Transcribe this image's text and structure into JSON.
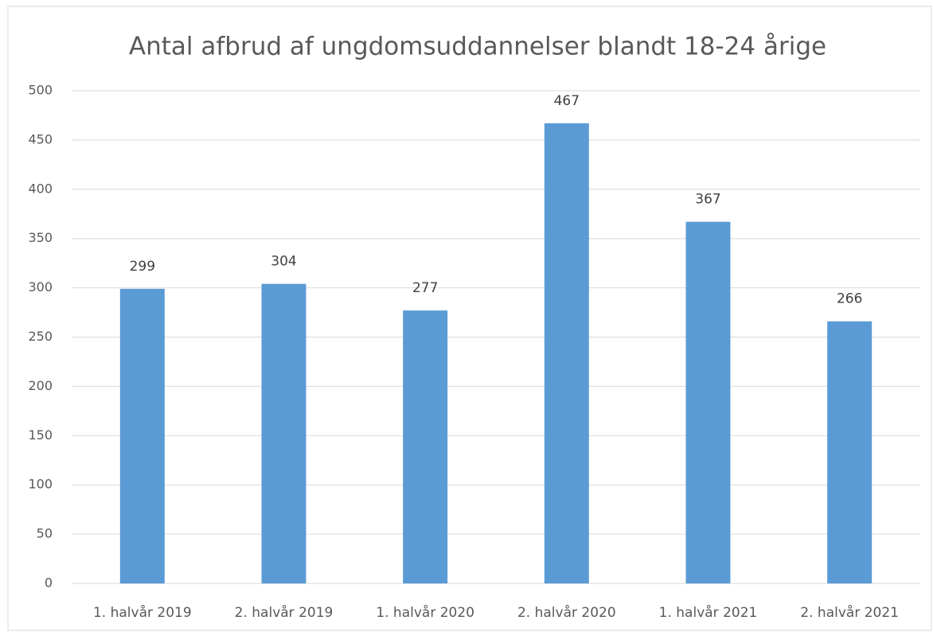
{
  "chart_data": {
    "type": "bar",
    "title": "Antal afbrud af ungdomsuddannelser blandt 18-24 årige",
    "categories": [
      "1. halvår 2019",
      "2. halvår 2019",
      "1. halvår 2020",
      "2. halvår 2020",
      "1. halvår 2021",
      "2. halvår 2021"
    ],
    "values": [
      299,
      304,
      277,
      467,
      367,
      266
    ],
    "color": "#5b9bd5",
    "ylim": [
      0,
      500
    ],
    "yticks": [
      0,
      50,
      100,
      150,
      200,
      250,
      300,
      350,
      400,
      450,
      500
    ],
    "grid": true,
    "data_labels": true
  }
}
